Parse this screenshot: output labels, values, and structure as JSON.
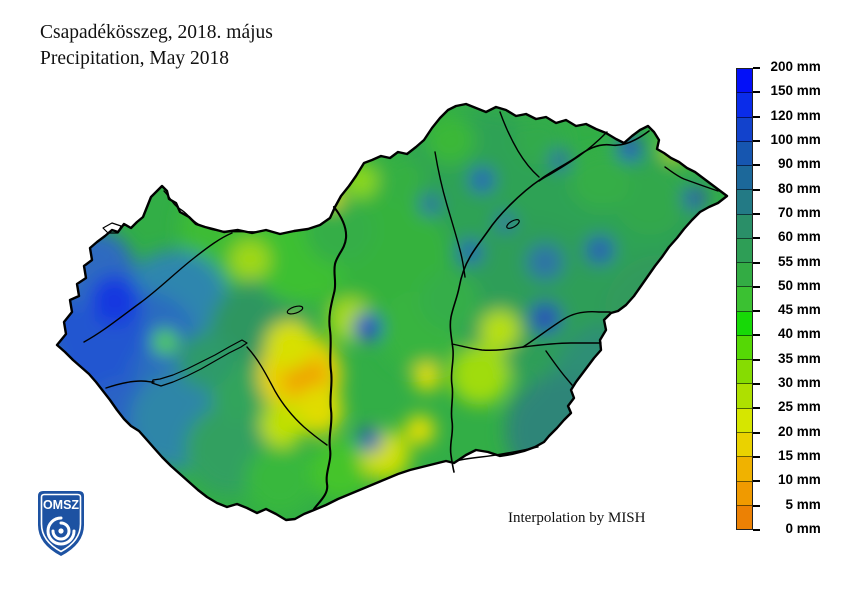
{
  "title": {
    "line1": "Csapadékösszeg, 2018. május",
    "line2": "Precipitation, May 2018"
  },
  "map": {
    "subject": "precipitation-sum-hungary",
    "attribution": "Interpolation by MISH"
  },
  "logo": {
    "text": "OMSZ"
  },
  "legend": {
    "unit": "mm",
    "labels": [
      "200",
      "150",
      "120",
      "100",
      "90",
      "80",
      "70",
      "60",
      "55",
      "50",
      "45",
      "40",
      "35",
      "30",
      "25",
      "20",
      "15",
      "10",
      "5",
      "0"
    ],
    "segment_colors": [
      "#0310f8",
      "#0a2cea",
      "#1242cc",
      "#1656b0",
      "#1c689a",
      "#237a85",
      "#2a8f68",
      "#2e9e56",
      "#33ac44",
      "#3bc132",
      "#17d907",
      "#55d805",
      "#86dc02",
      "#aee000",
      "#d6e600",
      "#ead200",
      "#f0b200",
      "#f09a00",
      "#ec8104"
    ]
  },
  "colors": {
    "background": "#ffffff",
    "map_base_green": "#32ae46",
    "border_line": "#000000",
    "logo_blue": "#1d52a2"
  }
}
